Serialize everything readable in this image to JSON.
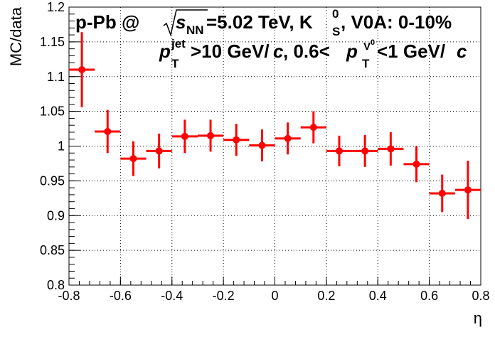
{
  "chart_data": {
    "type": "scatter",
    "title_line1": {
      "prefix": "p-Pb @ ",
      "sqrt_s": "s",
      "sqrt_s_sub": "NN",
      "energy": "=5.02 TeV, K",
      "k_sup": "0",
      "k_sub": "S",
      "rest": ", V0A: 0-10%"
    },
    "title_line2": {
      "p": "p",
      "p_sup": "jet",
      "p_sub": "T",
      "mid": ">10 GeV/",
      "c1": "c",
      "mid2": ", 0.6<",
      "p2": "p",
      "p2_sup": "V",
      "p2_sup_sup": "0",
      "p2_sub": "T",
      "mid3": "<1 GeV/",
      "c2": "c"
    },
    "xlabel": "η",
    "ylabel": "MC/data",
    "xlim": [
      -0.8,
      0.8
    ],
    "ylim": [
      0.8,
      1.2
    ],
    "x_ticks": [
      "-0.8",
      "-0.6",
      "-0.4",
      "-0.2",
      "0",
      "0.2",
      "0.4",
      "0.6",
      "0.8"
    ],
    "x_tick_values": [
      -0.8,
      -0.6,
      -0.4,
      -0.2,
      0,
      0.2,
      0.4,
      0.6,
      0.8
    ],
    "y_ticks": [
      "0.8",
      "0.85",
      "0.9",
      "0.95",
      "1",
      "1.05",
      "1.1",
      "1.15",
      "1.2"
    ],
    "y_tick_values": [
      0.8,
      0.85,
      0.9,
      0.95,
      1.0,
      1.05,
      1.1,
      1.15,
      1.2
    ],
    "grid": true,
    "color": "#ff0000",
    "series": [
      {
        "x": [
          -0.75,
          -0.65,
          -0.55,
          -0.45,
          -0.35,
          -0.25,
          -0.15,
          -0.05,
          0.05,
          0.15,
          0.25,
          0.35,
          0.45,
          0.55,
          0.65,
          0.75
        ],
        "xerr": [
          0.05,
          0.05,
          0.05,
          0.05,
          0.05,
          0.05,
          0.05,
          0.05,
          0.05,
          0.05,
          0.05,
          0.05,
          0.05,
          0.05,
          0.05,
          0.05
        ],
        "y": [
          1.11,
          1.021,
          0.982,
          0.993,
          1.014,
          1.015,
          1.009,
          1.001,
          1.011,
          1.027,
          0.993,
          0.993,
          0.996,
          0.974,
          0.932,
          0.937
        ],
        "yerr": [
          0.054,
          0.031,
          0.025,
          0.025,
          0.024,
          0.023,
          0.023,
          0.023,
          0.023,
          0.023,
          0.022,
          0.023,
          0.024,
          0.026,
          0.027,
          0.042
        ]
      }
    ]
  }
}
